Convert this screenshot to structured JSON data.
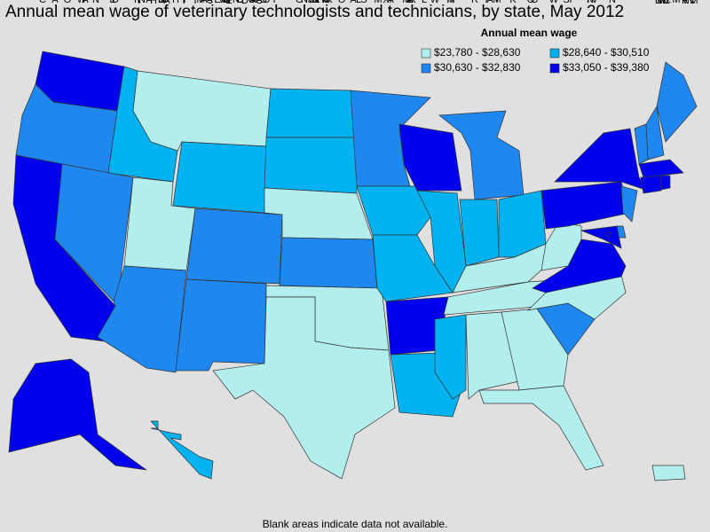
{
  "title": "Annual mean wage of veterinary technologists and technicians, by state, May 2012",
  "legend": {
    "title": "Annual mean wage",
    "items": [
      {
        "label": "$23,780 - $28,630",
        "color": "#b3eeee"
      },
      {
        "label": "$28,640 - $30,510",
        "color": "#00b2f0"
      },
      {
        "label": "$30,630 - $32,830",
        "color": "#1e88f0"
      },
      {
        "label": "$33,050 - $39,380",
        "color": "#0000ee"
      }
    ]
  },
  "states": [
    {
      "abbr": "WA",
      "color": "#0000ee"
    },
    {
      "abbr": "OR",
      "color": "#1e88f0"
    },
    {
      "abbr": "CA",
      "color": "#0000ee"
    },
    {
      "abbr": "NV",
      "color": "#1e88f0"
    },
    {
      "abbr": "ID",
      "color": "#00b2f0"
    },
    {
      "abbr": "MT",
      "color": "#b3eeee"
    },
    {
      "abbr": "WY",
      "color": "#00b2f0"
    },
    {
      "abbr": "UT",
      "color": "#b3eeee"
    },
    {
      "abbr": "AZ",
      "color": "#1e88f0"
    },
    {
      "abbr": "CO",
      "color": "#1e88f0"
    },
    {
      "abbr": "NM",
      "color": "#1e88f0"
    },
    {
      "abbr": "ND",
      "color": "#00b2f0"
    },
    {
      "abbr": "SD",
      "color": "#00b2f0"
    },
    {
      "abbr": "NE",
      "color": "#b3eeee"
    },
    {
      "abbr": "KS",
      "color": "#1e88f0"
    },
    {
      "abbr": "OK",
      "color": "#b3eeee"
    },
    {
      "abbr": "TX",
      "color": "#b3eeee"
    },
    {
      "abbr": "MN",
      "color": "#1e88f0"
    },
    {
      "abbr": "IA",
      "color": "#00b2f0"
    },
    {
      "abbr": "MO",
      "color": "#00b2f0"
    },
    {
      "abbr": "AR",
      "color": "#0000ee"
    },
    {
      "abbr": "LA",
      "color": "#00b2f0"
    },
    {
      "abbr": "WI",
      "color": "#0000ee"
    },
    {
      "abbr": "IL",
      "color": "#00b2f0"
    },
    {
      "abbr": "MI",
      "color": "#1e88f0"
    },
    {
      "abbr": "IN",
      "color": "#00b2f0"
    },
    {
      "abbr": "OH",
      "color": "#00b2f0"
    },
    {
      "abbr": "KY",
      "color": "#b3eeee"
    },
    {
      "abbr": "TN",
      "color": "#b3eeee"
    },
    {
      "abbr": "MS",
      "color": "#00b2f0"
    },
    {
      "abbr": "AL",
      "color": "#b3eeee"
    },
    {
      "abbr": "GA",
      "color": "#b3eeee"
    },
    {
      "abbr": "FL",
      "color": "#b3eeee"
    },
    {
      "abbr": "SC",
      "color": "#1e88f0"
    },
    {
      "abbr": "NC",
      "color": "#b3eeee"
    },
    {
      "abbr": "VA",
      "color": "#0000ee"
    },
    {
      "abbr": "WV",
      "color": "#b3eeee"
    },
    {
      "abbr": "PA",
      "color": "#0000ee"
    },
    {
      "abbr": "NY",
      "color": "#0000ee"
    },
    {
      "abbr": "VT",
      "color": "#1e88f0"
    },
    {
      "abbr": "NH",
      "color": "#1e88f0"
    },
    {
      "abbr": "ME",
      "color": "#1e88f0"
    },
    {
      "abbr": "MA",
      "color": "#0000ee"
    },
    {
      "abbr": "CT",
      "color": "#0000ee"
    },
    {
      "abbr": "RI",
      "color": "#0000ee"
    },
    {
      "abbr": "NJ",
      "color": "#1e88f0"
    },
    {
      "abbr": "DE",
      "color": "#1e88f0"
    },
    {
      "abbr": "MD",
      "color": "#0000ee"
    },
    {
      "abbr": "DC",
      "color": "#0000ee"
    },
    {
      "abbr": "AK",
      "color": "#0000ee"
    },
    {
      "abbr": "HI",
      "color": "#00b2f0"
    },
    {
      "abbr": "PR",
      "color": "#b3eeee"
    }
  ],
  "footnote": "Blank areas indicate data not available."
}
